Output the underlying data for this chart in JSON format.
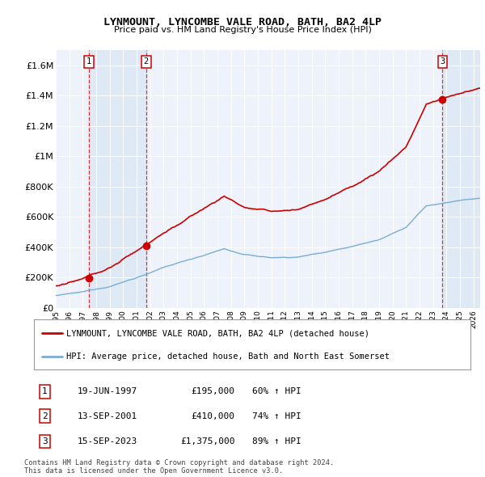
{
  "title": "LYNMOUNT, LYNCOMBE VALE ROAD, BATH, BA2 4LP",
  "subtitle": "Price paid vs. HM Land Registry's House Price Index (HPI)",
  "property_label": "LYNMOUNT, LYNCOMBE VALE ROAD, BATH, BA2 4LP (detached house)",
  "hpi_label": "HPI: Average price, detached house, Bath and North East Somerset",
  "footer": "Contains HM Land Registry data © Crown copyright and database right 2024.\nThis data is licensed under the Open Government Licence v3.0.",
  "sale_prices": [
    195000,
    410000,
    1375000
  ],
  "sale_labels": [
    "1",
    "2",
    "3"
  ],
  "sale_year_floats": [
    1997.47,
    2001.71,
    2023.71
  ],
  "sale_info": [
    {
      "num": "1",
      "date": "19-JUN-1997",
      "price": "£195,000",
      "hpi": "60% ↑ HPI"
    },
    {
      "num": "2",
      "date": "13-SEP-2001",
      "price": "£410,000",
      "hpi": "74% ↑ HPI"
    },
    {
      "num": "3",
      "date": "15-SEP-2023",
      "price": "£1,375,000",
      "hpi": "89% ↑ HPI"
    }
  ],
  "property_color": "#cc0000",
  "hpi_color": "#7aadd4",
  "shade_color": "#dce8f5",
  "background_color": "#edf2fb",
  "ylim": [
    0,
    1700000
  ],
  "xlim_start": 1995.0,
  "xlim_end": 2026.5,
  "yticks": [
    0,
    200000,
    400000,
    600000,
    800000,
    1000000,
    1200000,
    1400000,
    1600000
  ],
  "ytick_labels": [
    "£0",
    "£200K",
    "£400K",
    "£600K",
    "£800K",
    "£1M",
    "£1.2M",
    "£1.4M",
    "£1.6M"
  ]
}
